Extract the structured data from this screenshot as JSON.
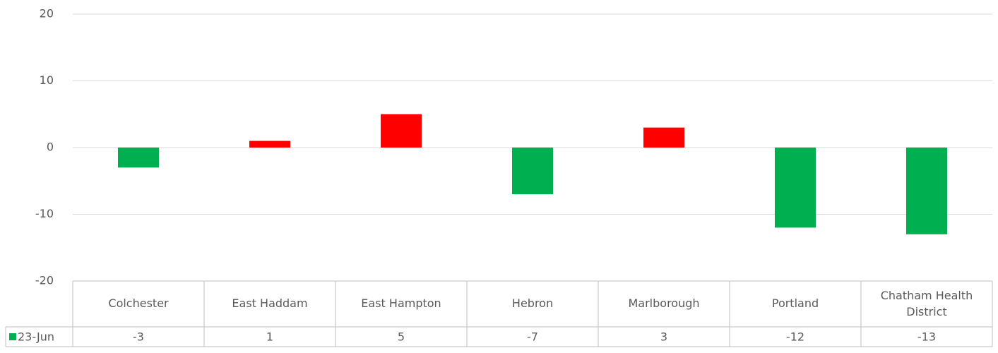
{
  "chart_data": {
    "type": "bar",
    "categories": [
      "Colchester",
      "East Haddam",
      "East Hampton",
      "Hebron",
      "Marlborough",
      "Portland",
      "Chatham Health District"
    ],
    "series": [
      {
        "name": "23-Jun",
        "color": "#00b050",
        "positive_color": "#ff0000",
        "values": [
          -3,
          1,
          5,
          -7,
          3,
          -12,
          -13
        ]
      }
    ],
    "ylim": [
      -20,
      20
    ],
    "yticks": [
      -20,
      -10,
      0,
      10,
      20
    ],
    "grid": true,
    "data_table": true
  }
}
